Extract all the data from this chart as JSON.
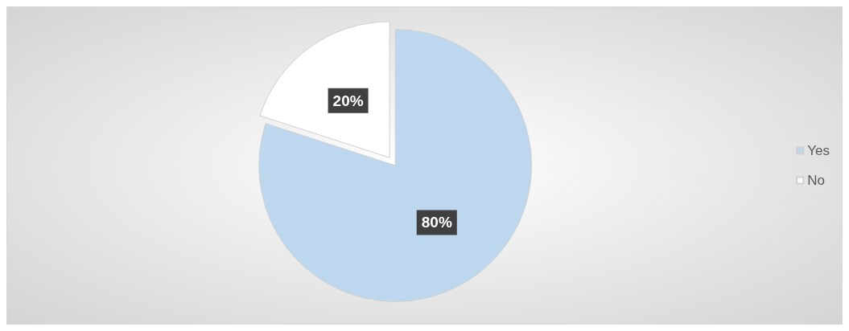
{
  "chart_data": {
    "type": "pie",
    "categories": [
      "Yes",
      "No"
    ],
    "values": [
      80,
      20
    ],
    "colors": [
      "#bdd7ee",
      "#ffffff"
    ],
    "value_labels": [
      "80%",
      "20%"
    ],
    "legend": "right"
  }
}
